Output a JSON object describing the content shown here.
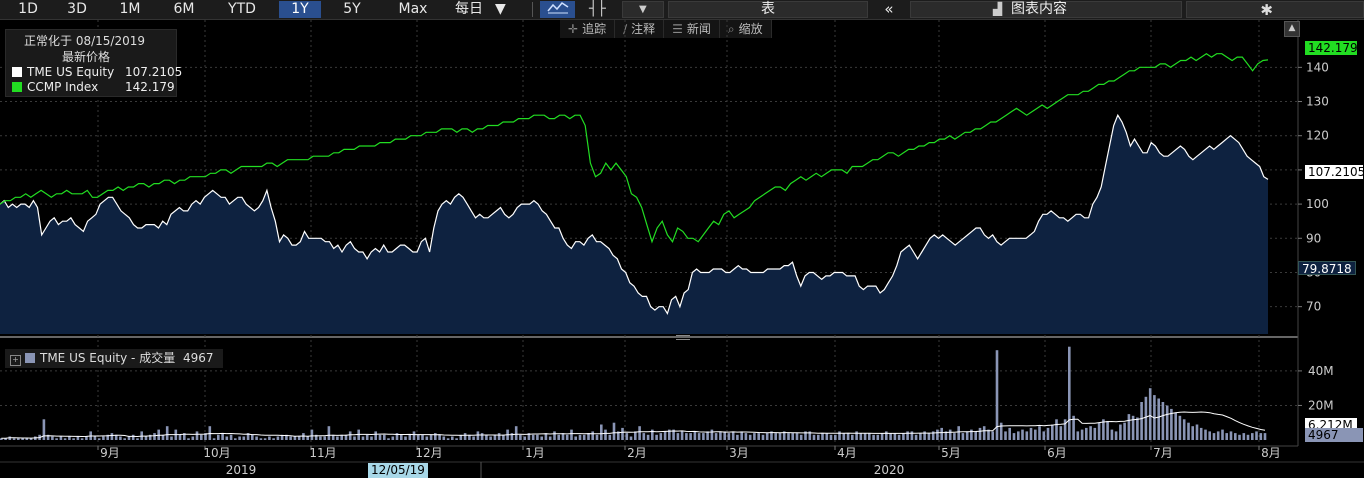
{
  "toolbar": {
    "ranges": [
      "1D",
      "3D",
      "1M",
      "6M",
      "YTD",
      "1Y",
      "5Y",
      "Max"
    ],
    "active_range": "1Y",
    "frequency": "每日",
    "table_label": "表",
    "chart_menu": "图表内容"
  },
  "subtoolbar": {
    "track": "追踪",
    "annotate": "注释",
    "news": "新闻",
    "zoom": "缩放"
  },
  "legend": {
    "line1": "正常化于 08/15/2019",
    "line2": "最新价格",
    "series": [
      {
        "name": "TME US Equity",
        "value": "107.2105",
        "color": "#ffffff"
      },
      {
        "name": "CCMP Index",
        "value": "142.179",
        "color": "#22dd22"
      }
    ]
  },
  "volume_legend": {
    "label": "TME US Equity - 成交量",
    "value": "4967"
  },
  "price_tags": {
    "ccmp": "142.179",
    "tme": "107.2105",
    "ref": "79.8718"
  },
  "volume_tags": {
    "ma": "6.212M",
    "vol": "4967"
  },
  "time_axis": {
    "months": [
      "9月",
      "10月",
      "11月",
      "12月",
      "1月",
      "2月",
      "3月",
      "4月",
      "5月",
      "6月",
      "7月",
      "8月"
    ],
    "years": [
      "2019",
      "2020"
    ],
    "cursor_date": "12/05/19"
  },
  "chart_data": {
    "type": "line",
    "y_axis": {
      "ticks": [
        70,
        80,
        90,
        100,
        110,
        120,
        130,
        140
      ],
      "range": [
        62,
        148
      ]
    },
    "volume_axis": {
      "ticks": [
        "20M",
        "40M"
      ],
      "range_millions": [
        0,
        55
      ]
    },
    "series": [
      {
        "name": "TME US Equity",
        "color": "#ffffff",
        "fill": "#0e2240",
        "values": [
          100,
          101,
          99,
          100,
          99,
          100,
          100,
          99,
          101,
          99,
          91,
          93,
          95,
          96,
          94,
          95,
          95,
          96,
          94,
          93,
          92,
          95,
          96,
          97,
          100,
          101,
          102,
          102,
          100,
          98,
          97,
          96,
          94,
          93,
          93,
          94,
          94,
          94,
          93,
          95,
          94,
          97,
          98,
          99,
          98,
          98,
          100,
          101,
          100,
          102,
          103,
          104,
          103,
          102,
          102,
          100,
          101,
          102,
          102,
          100,
          99,
          98,
          99,
          101,
          104,
          99,
          95,
          89,
          91,
          90,
          88,
          88,
          89,
          92,
          90,
          90,
          90,
          90,
          89,
          89,
          87,
          88,
          86,
          88,
          89,
          87,
          86,
          86,
          84,
          86,
          87,
          86,
          88,
          86,
          86,
          87,
          88,
          88,
          87,
          86,
          86,
          89,
          90,
          86,
          93,
          98,
          100,
          101,
          100,
          102,
          103,
          102,
          100,
          98,
          96,
          97,
          96,
          96,
          97,
          98,
          99,
          97,
          96,
          97,
          99,
          100,
          100,
          100,
          101,
          100,
          98,
          97,
          95,
          93,
          93,
          90,
          88,
          87,
          89,
          89,
          88,
          90,
          91,
          89,
          89,
          88,
          87,
          85,
          84,
          81,
          80,
          77,
          76,
          74,
          73,
          73,
          70,
          69,
          70,
          70,
          68,
          72,
          73,
          70,
          74,
          75,
          80,
          81,
          80,
          80,
          80,
          81,
          81,
          81,
          80,
          80,
          81,
          82,
          81,
          81,
          80,
          80,
          80,
          80,
          81,
          81,
          81,
          81,
          82,
          82,
          83,
          79,
          76,
          79,
          80,
          80,
          79,
          78,
          79,
          79,
          80,
          80,
          80,
          79,
          79,
          79,
          76,
          75,
          76,
          76,
          76,
          74,
          75,
          77,
          79,
          82,
          86,
          87,
          88,
          86,
          84,
          86,
          88,
          90,
          91,
          90,
          91,
          90,
          89,
          88,
          89,
          90,
          91,
          92,
          93,
          93,
          91,
          90,
          91,
          89,
          88,
          89,
          90,
          90,
          90,
          90,
          90,
          91,
          92,
          95,
          97,
          97,
          98,
          97,
          96,
          96,
          95,
          96,
          97,
          97,
          96,
          96,
          100,
          102,
          105,
          111,
          117,
          123,
          126,
          124,
          121,
          117,
          119,
          117,
          115,
          115,
          118,
          117,
          115,
          114,
          114,
          115,
          116,
          117,
          116,
          114,
          113,
          114,
          115,
          116,
          117,
          116,
          117,
          118,
          119,
          120,
          119,
          118,
          116,
          114,
          113,
          112,
          111,
          108,
          107.21
        ]
      },
      {
        "name": "CCMP Index",
        "color": "#22dd22",
        "values": [
          100,
          101,
          101,
          102,
          102,
          103,
          102,
          103,
          104,
          103,
          102,
          103,
          103,
          104,
          103,
          103,
          103,
          104,
          102,
          102,
          103,
          104,
          104,
          105,
          104,
          105,
          105,
          106,
          106,
          105,
          106,
          106,
          107,
          107,
          106,
          107,
          107,
          108,
          108,
          108,
          108,
          109,
          109,
          110,
          110,
          109,
          110,
          111,
          111,
          111,
          111,
          111,
          112,
          112,
          111,
          112,
          113,
          113,
          113,
          113,
          113,
          114,
          114,
          114,
          114,
          115,
          115,
          116,
          116,
          116,
          117,
          117,
          117,
          117,
          118,
          118,
          118,
          119,
          119,
          119,
          120,
          120,
          120,
          121,
          121,
          121,
          122,
          122,
          122,
          121,
          122,
          122,
          121,
          122,
          122,
          123,
          123,
          123,
          124,
          124,
          124,
          125,
          125,
          125,
          126,
          126,
          126,
          125,
          125,
          126,
          126,
          125,
          126,
          126,
          123,
          112,
          108,
          109,
          112,
          110,
          112,
          110,
          108,
          103,
          102,
          99,
          94,
          89,
          93,
          95,
          91,
          89,
          93,
          92,
          90,
          90,
          89,
          91,
          93,
          95,
          94,
          97,
          98,
          96,
          97,
          98,
          99,
          101,
          102,
          103,
          104,
          105,
          105,
          104,
          106,
          107,
          108,
          107,
          108,
          109,
          108,
          109,
          110,
          110,
          110,
          109,
          111,
          111,
          111,
          112,
          113,
          113,
          114,
          115,
          115,
          114,
          115,
          116,
          116,
          117,
          117,
          118,
          118,
          119,
          119,
          120,
          119,
          120,
          121,
          121,
          122,
          122,
          123,
          124,
          124,
          125,
          126,
          127,
          128,
          127,
          126,
          127,
          128,
          129,
          128,
          129,
          130,
          131,
          132,
          132,
          132,
          133,
          133,
          134,
          135,
          135,
          136,
          136,
          137,
          138,
          139,
          139,
          140,
          140,
          140,
          140,
          141,
          141,
          140,
          141,
          142,
          142,
          143,
          142,
          143,
          144,
          143,
          144,
          144,
          143,
          142,
          143,
          143,
          141,
          139,
          141,
          142,
          142.18
        ]
      }
    ],
    "volume_millions": [
      1,
      1,
      2,
      1,
      1,
      1,
      1,
      1,
      2,
      3,
      12,
      3,
      2,
      1,
      2,
      1,
      2,
      1,
      2,
      1,
      2,
      5,
      2,
      1,
      2,
      3,
      4,
      3,
      2,
      1,
      2,
      3,
      1,
      5,
      2,
      3,
      4,
      6,
      3,
      8,
      2,
      6,
      3,
      4,
      1,
      2,
      5,
      3,
      4,
      8,
      1,
      3,
      4,
      2,
      3,
      1,
      2,
      2,
      4,
      3,
      2,
      1,
      1,
      2,
      1,
      2,
      3,
      3,
      2,
      2,
      2,
      4,
      2,
      6,
      3,
      2,
      2,
      8,
      3,
      2,
      3,
      3,
      5,
      2,
      6,
      2,
      3,
      2,
      5,
      3,
      3,
      1,
      2,
      4,
      3,
      2,
      3,
      5,
      3,
      3,
      2,
      3,
      4,
      3,
      2,
      1,
      2,
      1,
      3,
      4,
      3,
      2,
      5,
      4,
      3,
      2,
      3,
      4,
      3,
      6,
      4,
      8,
      3,
      2,
      4,
      3,
      3,
      2,
      4,
      2,
      5,
      3,
      4,
      3,
      6,
      2,
      3,
      3,
      4,
      5,
      3,
      9,
      6,
      3,
      10,
      5,
      7,
      4,
      2,
      5,
      8,
      4,
      3,
      6,
      3,
      4,
      5,
      6,
      6,
      4,
      5,
      4,
      4,
      5,
      4,
      4,
      5,
      6,
      4,
      5,
      5,
      4,
      5,
      3,
      5,
      4,
      3,
      4,
      4,
      3,
      4,
      5,
      4,
      4,
      5,
      4,
      4,
      4,
      3,
      5,
      5,
      3,
      3,
      4,
      4,
      3,
      3,
      5,
      4,
      4,
      3,
      5,
      4,
      4,
      4,
      3,
      3,
      4,
      5,
      4,
      4,
      3,
      4,
      5,
      5,
      3,
      4,
      5,
      4,
      5,
      6,
      7,
      5,
      6,
      4,
      8,
      4,
      5,
      6,
      5,
      7,
      8,
      6,
      5,
      52,
      10,
      5,
      7,
      4,
      5,
      6,
      5,
      7,
      6,
      8,
      5,
      7,
      9,
      12,
      8,
      12,
      54,
      14,
      5,
      6,
      7,
      8,
      7,
      10,
      12,
      11,
      6,
      5,
      9,
      10,
      15,
      14,
      13,
      22,
      25,
      30,
      26,
      24,
      22,
      20,
      18,
      16,
      14,
      12,
      10,
      8,
      9,
      7,
      6,
      5,
      4,
      5,
      6,
      4,
      5,
      4,
      3,
      4,
      3,
      4,
      5,
      4,
      4
    ]
  }
}
